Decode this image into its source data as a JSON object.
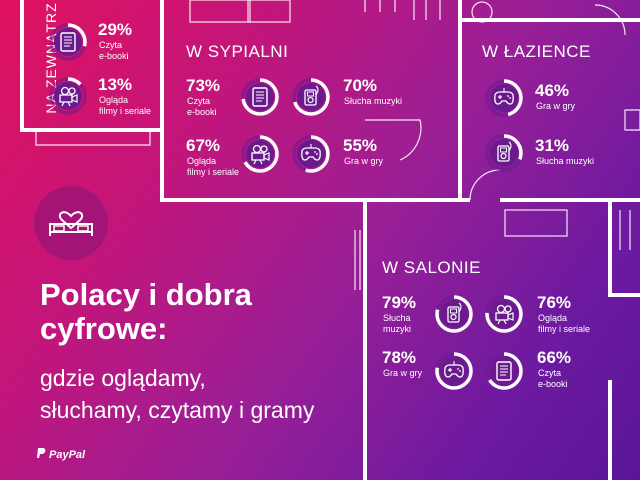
{
  "outside": {
    "title": "NA ZEWNĄTRZ",
    "stats": [
      {
        "pct": "29%",
        "label": "Czyta\ne-booki",
        "value": 29,
        "icon": "ebook-icon"
      },
      {
        "pct": "13%",
        "label": "Ogląda\nfilmy i seriale",
        "value": 13,
        "icon": "projector-icon"
      }
    ]
  },
  "bedroom": {
    "title": "W SYPIALNI",
    "stats": [
      {
        "pct": "73%",
        "label": "Czyta\ne-booki",
        "value": 73,
        "icon": "ebook-icon"
      },
      {
        "pct": "70%",
        "label": "Słucha muzyki",
        "value": 70,
        "icon": "music-player-icon"
      },
      {
        "pct": "67%",
        "label": "Ogląda\nfilmy i seriale",
        "value": 67,
        "icon": "projector-icon"
      },
      {
        "pct": "55%",
        "label": "Gra w gry",
        "value": 55,
        "icon": "gamepad-icon"
      }
    ]
  },
  "bathroom": {
    "title": "W ŁAZIENCE",
    "stats": [
      {
        "pct": "46%",
        "label": "Gra w gry",
        "value": 46,
        "icon": "gamepad-icon"
      },
      {
        "pct": "31%",
        "label": "Słucha muzyki",
        "value": 31,
        "icon": "music-player-icon"
      }
    ]
  },
  "living": {
    "title": "W SALONIE",
    "stats": [
      {
        "pct": "79%",
        "label": "Słucha\nmuzyki",
        "value": 79,
        "icon": "music-player-icon"
      },
      {
        "pct": "76%",
        "label": "Ogląda\nfilmy i seriale",
        "value": 76,
        "icon": "projector-icon"
      },
      {
        "pct": "78%",
        "label": "Gra w gry",
        "value": 78,
        "icon": "gamepad-icon"
      },
      {
        "pct": "66%",
        "label": "Czyta\ne-booki",
        "value": 66,
        "icon": "ebook-icon"
      }
    ]
  },
  "headline": {
    "main": "Polacy i dobra\ncyfrowe:",
    "sub": "gdzie oglądamy,\nsłuchamy, czytamy i gramy"
  },
  "brand": "PayPal",
  "colors": {
    "ring": "#ffffff",
    "ring_bg": "#6b1a8f",
    "icon_bg": "#6a1a8c"
  }
}
